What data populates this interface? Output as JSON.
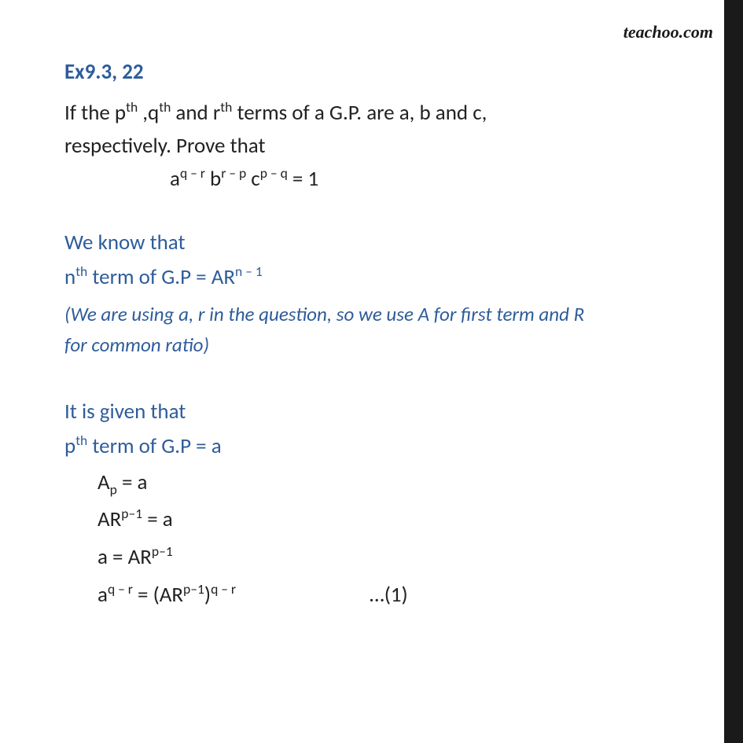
{
  "watermark": "teachoo.com",
  "colors": {
    "heading": "#2e5c9a",
    "body": "#222222",
    "sidebar": "#1a1a1a",
    "background": "#ffffff"
  },
  "typography": {
    "heading_fontsize": 27,
    "body_fontsize": 27,
    "note_fontsize": 25,
    "watermark_font": "Brush Script MT"
  },
  "heading": "Ex9.3, 22",
  "question_l1_pre": "If the p",
  "question_l1_mid1": " ,q",
  "question_l1_mid2": " and r",
  "question_l1_post": " terms of a G.P. are a, b and c,",
  "question_l2": "respectively. Prove that",
  "th": "th",
  "eq_a": "a",
  "eq_exp1": "q – r",
  "eq_b": " b",
  "eq_exp2": "r – p",
  "eq_c": " c",
  "eq_exp3": "p – q",
  "eq_tail": "  = 1",
  "know": "We know that",
  "nth_pre": "n",
  "nth_post": " term of G.P  = AR",
  "nth_exp": "n – 1",
  "note_l1": "(We are using a, r in the question, so we use A for first term and R",
  "note_l2": "for common ratio)",
  "given": "It is given that",
  "pth_pre": "p",
  "pth_post": " term of G.P = a",
  "m1_pre": "A",
  "m1_sub": "p",
  "m1_post": " = a",
  "m2_pre": "AR",
  "m2_exp": "p–1",
  "m2_post": " = a",
  "m3_pre": "a = AR",
  "m3_exp": "p–1",
  "m4_pre": "a",
  "m4_exp1": "q – r",
  "m4_mid": " = (AR",
  "m4_exp2": "p–1",
  "m4_close": ")",
  "m4_exp3": "q – r",
  "m4_ref": "…(1)"
}
